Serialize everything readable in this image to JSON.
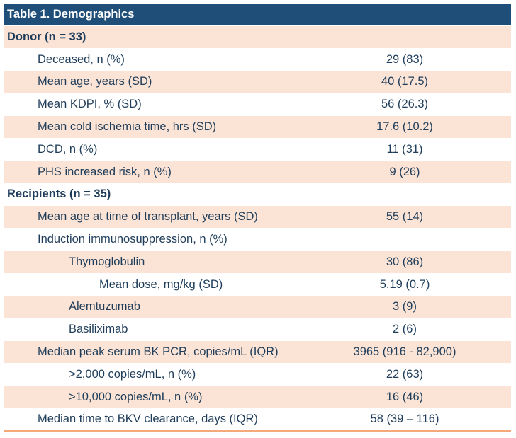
{
  "title": "Table 1. Demographics",
  "rows": [
    {
      "label": "Donor (n = 33)",
      "value": "",
      "type": "section",
      "level": 0,
      "shade": true
    },
    {
      "label": "Deceased, n (%)",
      "value": "29 (83)",
      "type": "item",
      "level": 1,
      "shade": false
    },
    {
      "label": "Mean age, years (SD)",
      "value": "40 (17.5)",
      "type": "item",
      "level": 1,
      "shade": true
    },
    {
      "label": "Mean KDPI, % (SD)",
      "value": "56 (26.3)",
      "type": "item",
      "level": 1,
      "shade": false
    },
    {
      "label": "Mean cold ischemia time, hrs (SD)",
      "value": "17.6 (10.2)",
      "type": "item",
      "level": 1,
      "shade": true
    },
    {
      "label": "DCD, n (%)",
      "value": "11 (31)",
      "type": "item",
      "level": 1,
      "shade": false
    },
    {
      "label": "PHS increased risk, n (%)",
      "value": "9 (26)",
      "type": "item",
      "level": 1,
      "shade": true
    },
    {
      "label": "Recipients (n = 35)",
      "value": "",
      "type": "section",
      "level": 0,
      "shade": false
    },
    {
      "label": "Mean age at time of transplant, years (SD)",
      "value": "55 (14)",
      "type": "item",
      "level": 1,
      "shade": true
    },
    {
      "label": "Induction immunosuppression, n (%)",
      "value": "",
      "type": "item",
      "level": 1,
      "shade": false
    },
    {
      "label": "Thymoglobulin",
      "value": "30 (86)",
      "type": "item",
      "level": 2,
      "shade": true
    },
    {
      "label": "Mean dose, mg/kg (SD)",
      "value": "5.19 (0.7)",
      "type": "item",
      "level": 3,
      "shade": false
    },
    {
      "label": "Alemtuzumab",
      "value": "3 (9)",
      "type": "item",
      "level": 2,
      "shade": true
    },
    {
      "label": "Basiliximab",
      "value": "2 (6)",
      "type": "item",
      "level": 2,
      "shade": false
    },
    {
      "label": "Median peak serum BK PCR, copies/mL (IQR)",
      "value": "3965 (916 - 82,900)",
      "type": "item",
      "level": 1,
      "shade": true
    },
    {
      "label": ">2,000 copies/mL, n (%)",
      "value": "22 (63)",
      "type": "item",
      "level": 2,
      "shade": false
    },
    {
      "label": ">10,000 copies/mL, n (%)",
      "value": "16 (46)",
      "type": "item",
      "level": 2,
      "shade": true
    },
    {
      "label": "Median time to BKV clearance, days (IQR)",
      "value": "58 (39 – 116)",
      "type": "item",
      "level": 1,
      "shade": false
    }
  ]
}
